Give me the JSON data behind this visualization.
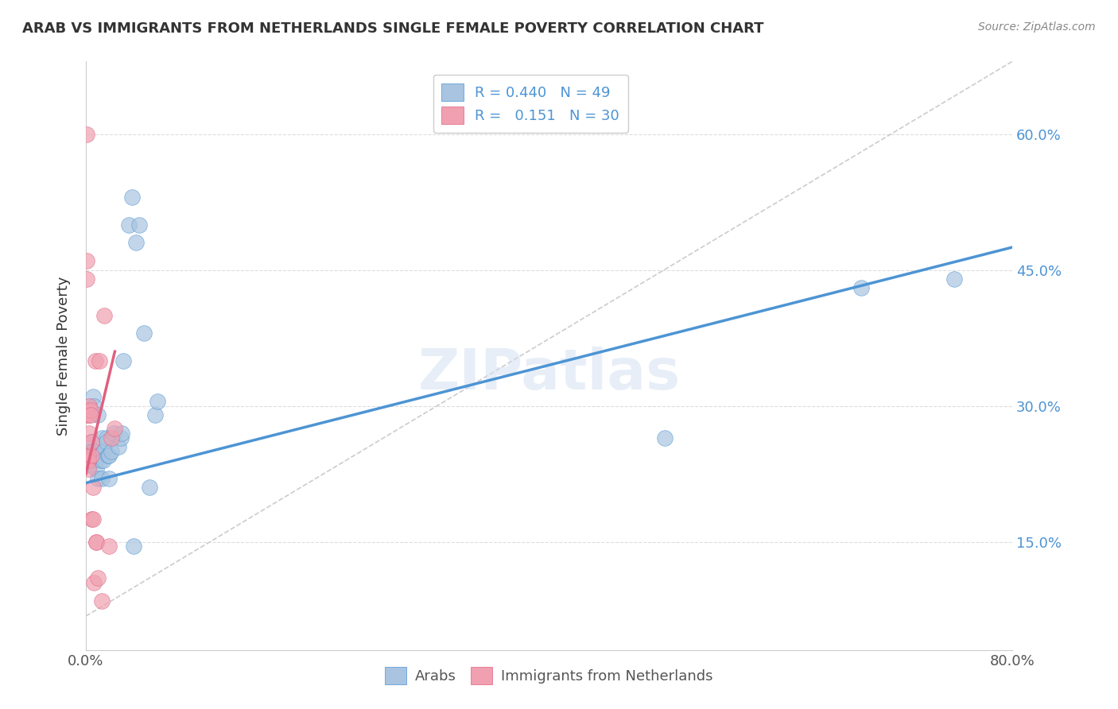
{
  "title": "ARAB VS IMMIGRANTS FROM NETHERLANDS SINGLE FEMALE POVERTY CORRELATION CHART",
  "source": "Source: ZipAtlas.com",
  "ylabel": "Single Female Poverty",
  "ytick_labels": [
    "15.0%",
    "30.0%",
    "45.0%",
    "60.0%"
  ],
  "ytick_values": [
    0.15,
    0.3,
    0.45,
    0.6
  ],
  "xlim": [
    0.0,
    0.8
  ],
  "ylim": [
    0.03,
    0.68
  ],
  "watermark": "ZIPatlas",
  "legend_arab_R": "0.440",
  "legend_arab_N": "49",
  "legend_neth_R": "0.151",
  "legend_neth_N": "30",
  "arab_color": "#a8c4e0",
  "neth_color": "#f0a0b0",
  "arab_line_color": "#4d94d4",
  "neth_line_color": "#e06080",
  "arab_scatter": [
    [
      0.001,
      0.245
    ],
    [
      0.001,
      0.235
    ],
    [
      0.002,
      0.245
    ],
    [
      0.002,
      0.25
    ],
    [
      0.002,
      0.235
    ],
    [
      0.003,
      0.245
    ],
    [
      0.003,
      0.24
    ],
    [
      0.003,
      0.25
    ],
    [
      0.004,
      0.25
    ],
    [
      0.004,
      0.24
    ],
    [
      0.005,
      0.26
    ],
    [
      0.005,
      0.25
    ],
    [
      0.006,
      0.31
    ],
    [
      0.006,
      0.25
    ],
    [
      0.007,
      0.3
    ],
    [
      0.008,
      0.245
    ],
    [
      0.008,
      0.24
    ],
    [
      0.009,
      0.23
    ],
    [
      0.01,
      0.29
    ],
    [
      0.01,
      0.22
    ],
    [
      0.013,
      0.245
    ],
    [
      0.013,
      0.24
    ],
    [
      0.014,
      0.265
    ],
    [
      0.014,
      0.22
    ],
    [
      0.015,
      0.25
    ],
    [
      0.015,
      0.24
    ],
    [
      0.018,
      0.265
    ],
    [
      0.018,
      0.26
    ],
    [
      0.019,
      0.245
    ],
    [
      0.02,
      0.245
    ],
    [
      0.02,
      0.22
    ],
    [
      0.022,
      0.25
    ],
    [
      0.024,
      0.27
    ],
    [
      0.028,
      0.255
    ],
    [
      0.03,
      0.265
    ],
    [
      0.031,
      0.27
    ],
    [
      0.032,
      0.35
    ],
    [
      0.037,
      0.5
    ],
    [
      0.04,
      0.53
    ],
    [
      0.041,
      0.145
    ],
    [
      0.043,
      0.48
    ],
    [
      0.046,
      0.5
    ],
    [
      0.05,
      0.38
    ],
    [
      0.055,
      0.21
    ],
    [
      0.06,
      0.29
    ],
    [
      0.062,
      0.305
    ],
    [
      0.67,
      0.43
    ],
    [
      0.75,
      0.44
    ],
    [
      0.5,
      0.265
    ]
  ],
  "neth_scatter": [
    [
      0.001,
      0.6
    ],
    [
      0.001,
      0.46
    ],
    [
      0.001,
      0.44
    ],
    [
      0.001,
      0.295
    ],
    [
      0.001,
      0.29
    ],
    [
      0.002,
      0.245
    ],
    [
      0.002,
      0.24
    ],
    [
      0.002,
      0.24
    ],
    [
      0.002,
      0.23
    ],
    [
      0.003,
      0.27
    ],
    [
      0.003,
      0.29
    ],
    [
      0.003,
      0.3
    ],
    [
      0.004,
      0.295
    ],
    [
      0.004,
      0.29
    ],
    [
      0.005,
      0.245
    ],
    [
      0.005,
      0.26
    ],
    [
      0.005,
      0.175
    ],
    [
      0.006,
      0.21
    ],
    [
      0.006,
      0.175
    ],
    [
      0.007,
      0.105
    ],
    [
      0.008,
      0.35
    ],
    [
      0.009,
      0.15
    ],
    [
      0.009,
      0.15
    ],
    [
      0.01,
      0.11
    ],
    [
      0.012,
      0.35
    ],
    [
      0.014,
      0.085
    ],
    [
      0.016,
      0.4
    ],
    [
      0.02,
      0.145
    ],
    [
      0.022,
      0.265
    ],
    [
      0.025,
      0.275
    ]
  ],
  "arab_line_x": [
    0.0,
    0.8
  ],
  "arab_line_y": [
    0.215,
    0.475
  ],
  "neth_line_x": [
    0.0,
    0.025
  ],
  "neth_line_y": [
    0.225,
    0.36
  ],
  "dashed_line_x": [
    0.0,
    0.8
  ],
  "dashed_line_y": [
    0.068,
    0.68
  ]
}
